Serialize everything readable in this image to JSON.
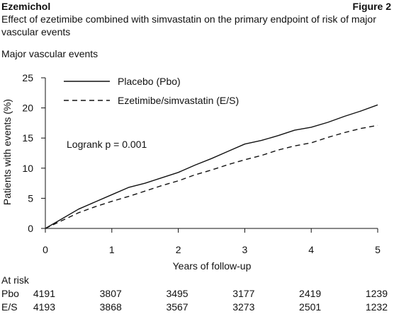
{
  "header": {
    "drug": "Ezemichol",
    "figure": "Figure 2",
    "subtitle": "Effect of ezetimibe combined with simvastatin on the primary endpoint of risk of major vascular events",
    "panel_title": "Major vascular events"
  },
  "chart_data": {
    "type": "line",
    "xlabel": "Years of follow-up",
    "ylabel": "Patients with events (%)",
    "xlim": [
      0,
      5
    ],
    "ylim": [
      0,
      25
    ],
    "xticks": [
      0,
      1,
      2,
      3,
      4,
      5
    ],
    "yticks": [
      0,
      5,
      10,
      15,
      20,
      25
    ],
    "grid": false,
    "legend_position": "top-left",
    "annotation": "Logrank p = 0.001",
    "series": [
      {
        "name": "Placebo (Pbo)",
        "style": "solid",
        "x": [
          0,
          0.25,
          0.5,
          0.75,
          1.0,
          1.25,
          1.5,
          1.75,
          2.0,
          2.25,
          2.5,
          2.75,
          3.0,
          3.25,
          3.5,
          3.75,
          4.0,
          4.25,
          4.5,
          4.75,
          5.0
        ],
        "y": [
          0,
          1.6,
          3.2,
          4.4,
          5.6,
          6.8,
          7.5,
          8.4,
          9.3,
          10.5,
          11.6,
          12.8,
          14.0,
          14.6,
          15.4,
          16.3,
          16.8,
          17.6,
          18.6,
          19.5,
          20.5
        ]
      },
      {
        "name": "Ezetimibe/simvastatin (E/S)",
        "style": "dashed",
        "x": [
          0,
          0.25,
          0.5,
          0.75,
          1.0,
          1.25,
          1.5,
          1.75,
          2.0,
          2.25,
          2.5,
          2.75,
          3.0,
          3.25,
          3.5,
          3.75,
          4.0,
          4.25,
          4.5,
          4.75,
          5.0
        ],
        "y": [
          0,
          1.3,
          2.6,
          3.6,
          4.5,
          5.3,
          6.2,
          7.1,
          7.9,
          8.9,
          9.7,
          10.6,
          11.4,
          12.1,
          13.0,
          13.7,
          14.2,
          15.1,
          15.9,
          16.6,
          17.1
        ]
      }
    ]
  },
  "at_risk": {
    "title": "At risk",
    "rows": [
      {
        "label": "Pbo",
        "values": [
          "4191",
          "3807",
          "3495",
          "3177",
          "2419",
          "1239"
        ]
      },
      {
        "label": "E/S",
        "values": [
          "4193",
          "3868",
          "3567",
          "3273",
          "2501",
          "1232"
        ]
      }
    ]
  },
  "colors": {
    "ink": "#111111",
    "background": "#ffffff"
  }
}
